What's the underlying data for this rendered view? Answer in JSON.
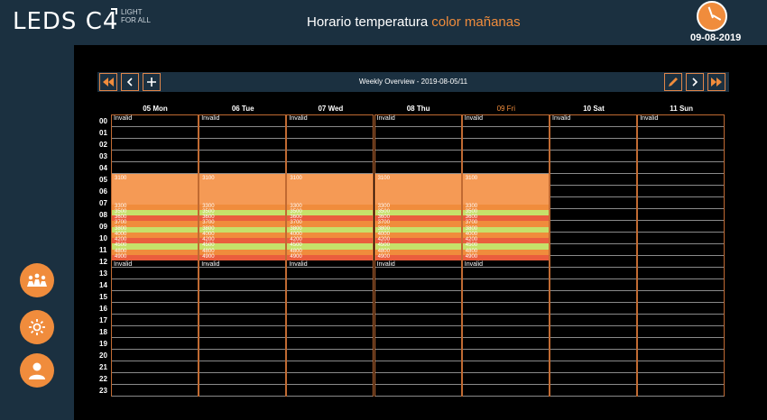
{
  "header": {
    "logo": "LEDS C4",
    "logo_tag": "LIGHT FOR ALL",
    "title": "Horario temperatura",
    "title_accent": "color mañanas",
    "date": "09-08-2019"
  },
  "toolbar": {
    "title": "Weekly Overview - 2019-08-05/11",
    "first_icon": "double-left-arrow",
    "prev_icon": "left-arrow",
    "add_icon": "plus",
    "edit_icon": "pencil",
    "next_icon": "right-arrow",
    "last_icon": "double-right-arrow"
  },
  "days": [
    {
      "label": "05 Mon",
      "today": false
    },
    {
      "label": "06 Tue",
      "today": false
    },
    {
      "label": "07 Wed",
      "today": false
    },
    {
      "label": "08 Thu",
      "today": false
    },
    {
      "label": "09 Fri",
      "today": true
    },
    {
      "label": "10 Sat",
      "today": false
    },
    {
      "label": "11 Sun",
      "today": false
    }
  ],
  "hours": [
    "00",
    "01",
    "02",
    "03",
    "04",
    "05",
    "06",
    "07",
    "08",
    "09",
    "10",
    "11",
    "12",
    "13",
    "14",
    "15",
    "16",
    "17",
    "18",
    "19",
    "20",
    "21",
    "22",
    "23"
  ],
  "invalid_label": "Invalid",
  "schedule": {
    "main_block_value": "3100",
    "stripe_values": [
      "3300",
      "3500",
      "3600",
      "3700",
      "3800",
      "4000",
      "4200",
      "4500",
      "4800",
      "4900"
    ],
    "colors": {
      "main": "#f59a55",
      "orange": "#f08c3c",
      "green": "#c6e06a",
      "red": "#ea5d3d"
    }
  },
  "sidebar": {
    "buttons": [
      {
        "name": "scenes-icon"
      },
      {
        "name": "settings-icon"
      },
      {
        "name": "user-icon"
      }
    ]
  }
}
